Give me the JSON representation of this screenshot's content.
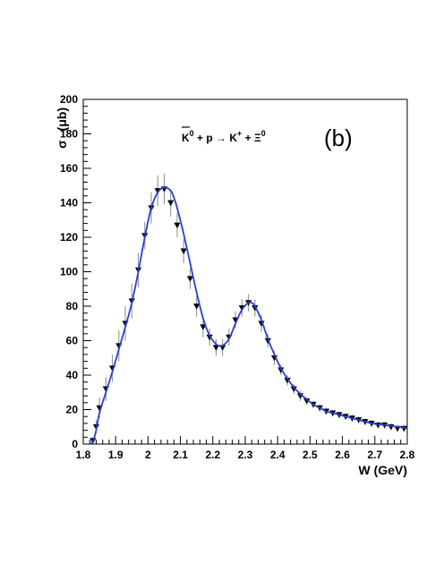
{
  "chart_data": {
    "type": "scatter",
    "title": "",
    "annotation": {
      "reaction_parts": {
        "k0": "K",
        "k0_sup": "0",
        "plus_p": " + p ",
        "arrow": "→",
        "k_plus": " K",
        "k_plus_sup": "+",
        "plus_xi": " + Ξ",
        "xi_sup": "0"
      },
      "panel_label": "(b)"
    },
    "xlabel": "W (GeV)",
    "ylabel_parts": {
      "sigma": "σ",
      "unit": "(μb)"
    },
    "xlim": [
      1.8,
      2.8
    ],
    "ylim": [
      0,
      200
    ],
    "xticks": [
      "1.8",
      "1.9",
      "2",
      "2.1",
      "2.2",
      "2.3",
      "2.4",
      "2.5",
      "2.6",
      "2.7",
      "2.8"
    ],
    "yticks": [
      "0",
      "20",
      "40",
      "60",
      "80",
      "100",
      "120",
      "140",
      "160",
      "180",
      "200"
    ],
    "grid": false,
    "legend": "none",
    "colors": {
      "fit_line": "#2b3fd0",
      "markers": "#000000",
      "error_bars": "#8a8a8a"
    },
    "marker": "triangle-down",
    "series": [
      {
        "type": "scatter-errorbar",
        "x": [
          1.83,
          1.84,
          1.85,
          1.87,
          1.89,
          1.91,
          1.93,
          1.95,
          1.97,
          1.99,
          2.01,
          2.03,
          2.05,
          2.07,
          2.09,
          2.11,
          2.13,
          2.15,
          2.17,
          2.19,
          2.21,
          2.23,
          2.25,
          2.27,
          2.29,
          2.31,
          2.33,
          2.35,
          2.37,
          2.39,
          2.41,
          2.43,
          2.45,
          2.47,
          2.49,
          2.51,
          2.53,
          2.55,
          2.57,
          2.59,
          2.61,
          2.63,
          2.65,
          2.67,
          2.69,
          2.71,
          2.73,
          2.75,
          2.77,
          2.79
        ],
        "y": [
          2,
          10,
          21,
          32,
          44,
          57,
          70,
          83,
          101,
          121,
          137,
          147,
          148,
          140,
          127,
          112,
          96,
          80,
          68,
          62,
          56,
          56,
          62,
          72,
          79,
          82,
          79,
          70,
          60,
          50,
          43,
          37,
          32,
          28,
          25,
          23,
          21,
          19,
          18,
          17,
          16,
          15,
          14,
          13,
          12,
          11,
          11,
          10,
          9,
          9
        ],
        "err": [
          2,
          4,
          6,
          7,
          8,
          9,
          10,
          10,
          10,
          8,
          9,
          9,
          9,
          8,
          7,
          7,
          6,
          6,
          6,
          5,
          5,
          5,
          5,
          5,
          5,
          5,
          5,
          5,
          4,
          4,
          3,
          3,
          3,
          3,
          2,
          2,
          2,
          2,
          2,
          2,
          2,
          2,
          2,
          2,
          2,
          2,
          2,
          2,
          2,
          2
        ]
      },
      {
        "type": "line",
        "x": [
          1.82,
          1.83,
          1.84,
          1.85,
          1.87,
          1.89,
          1.91,
          1.93,
          1.95,
          1.97,
          1.99,
          2.01,
          2.03,
          2.05,
          2.07,
          2.08,
          2.09,
          2.11,
          2.13,
          2.15,
          2.17,
          2.19,
          2.21,
          2.22,
          2.23,
          2.25,
          2.27,
          2.29,
          2.31,
          2.32,
          2.33,
          2.35,
          2.37,
          2.39,
          2.41,
          2.43,
          2.45,
          2.47,
          2.49,
          2.51,
          2.53,
          2.55,
          2.57,
          2.59,
          2.61,
          2.63,
          2.65,
          2.67,
          2.69,
          2.71,
          2.73,
          2.75,
          2.77,
          2.79,
          2.8
        ],
        "y": [
          0,
          1.5,
          8,
          18,
          30,
          42,
          55,
          68,
          82,
          100,
          120,
          137,
          146,
          149,
          147,
          143,
          137,
          122,
          105,
          88,
          73,
          63,
          58,
          57,
          57,
          61,
          70,
          78,
          82,
          82,
          80,
          72,
          61,
          52,
          44,
          38,
          33,
          29,
          26,
          23,
          21,
          19,
          18,
          17,
          16,
          15,
          14,
          13,
          12,
          11.5,
          11,
          10.5,
          10,
          9.5,
          9
        ]
      }
    ]
  }
}
